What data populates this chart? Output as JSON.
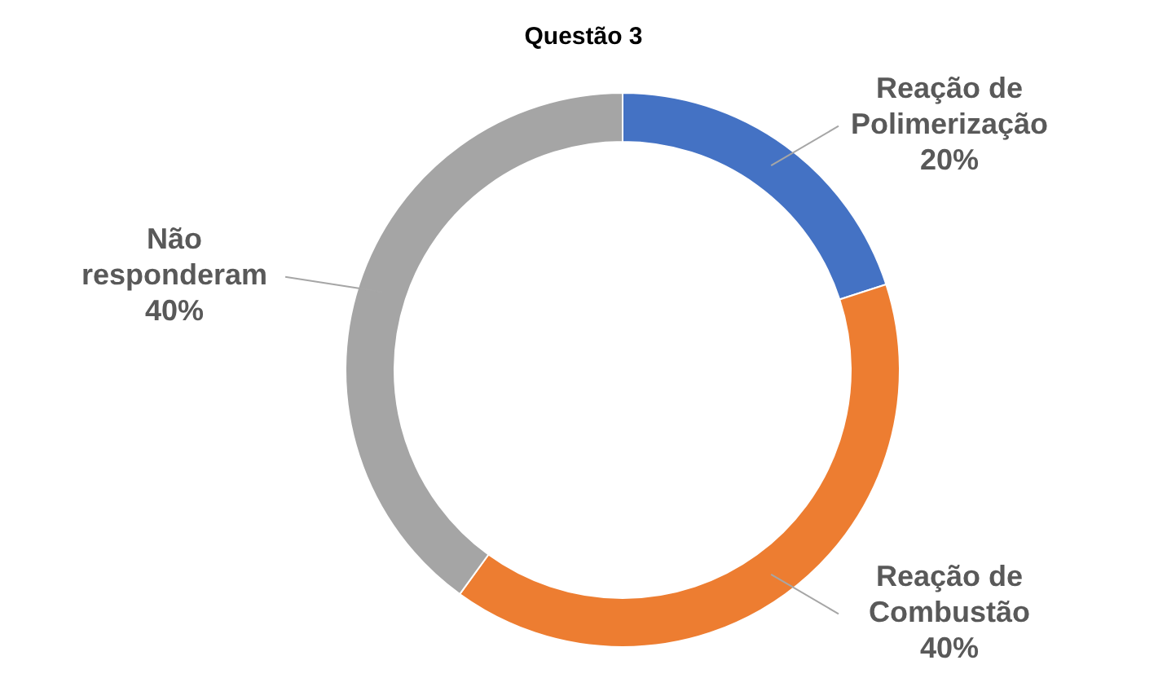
{
  "chart_data": {
    "type": "donut",
    "title": "Questão 3",
    "categories": [
      "Reação de Polimerização",
      "Reação de Combustão",
      "Não responderam"
    ],
    "values": [
      20,
      40,
      40
    ],
    "colors": [
      "#4472c4",
      "#ed7d31",
      "#a5a5a5"
    ],
    "value_labels": [
      "20%",
      "40%",
      "40%"
    ],
    "legend": false
  }
}
